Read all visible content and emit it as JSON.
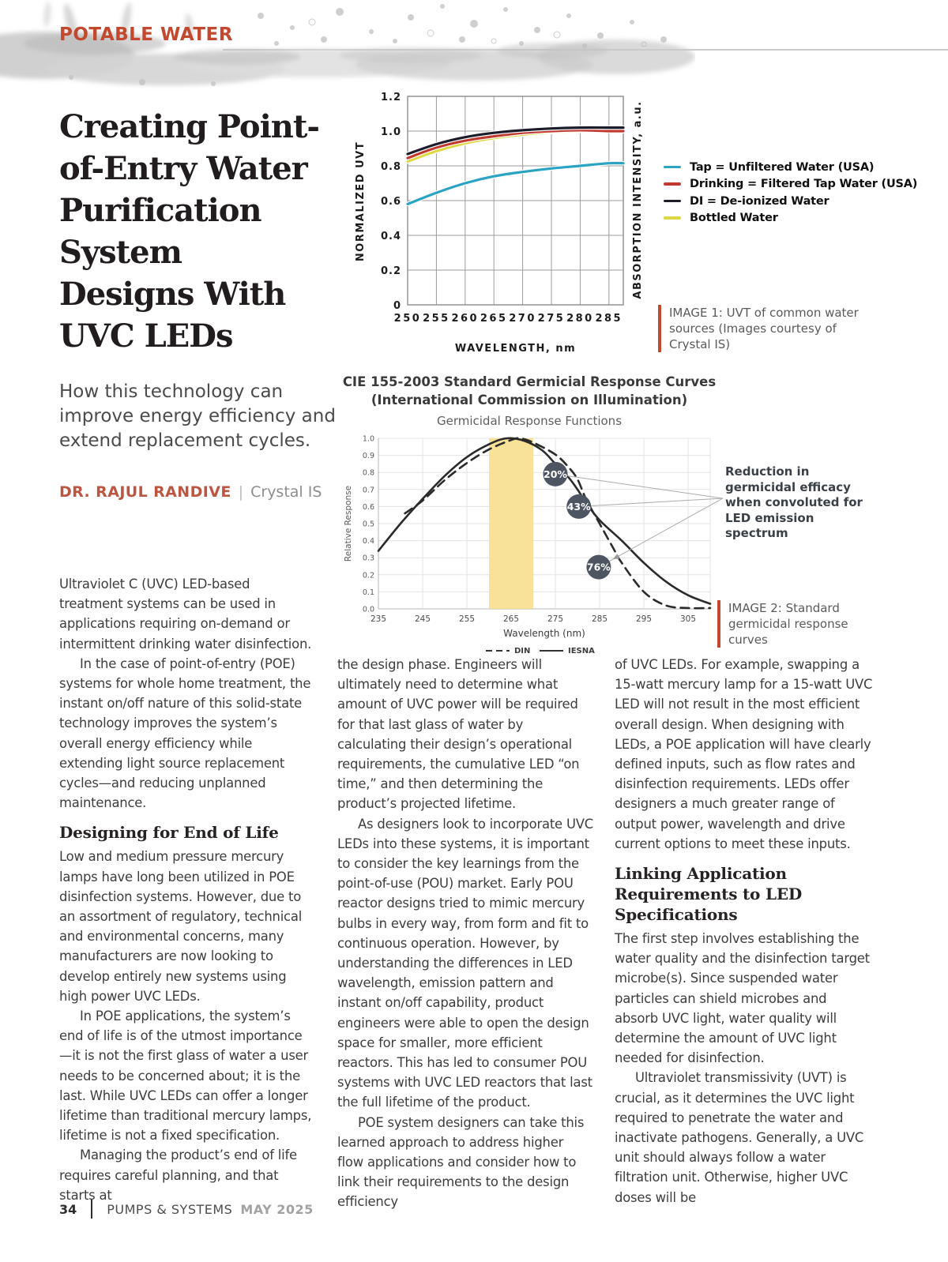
{
  "page": {
    "section_label": "POTABLE WATER",
    "footer": {
      "page_number": "34",
      "magazine": "PUMPS & SYSTEMS",
      "issue": "MAY 2025"
    }
  },
  "article": {
    "title": "Creating Point-\nof-Entry Water\nPurification\nSystem\nDesigns With\nUVC LEDs",
    "subtitle": "How this technology can\nimprove energy efficiency and\nextend replacement cycles.",
    "author": {
      "name": "DR. RAJUL RANDIVE",
      "separator": "|",
      "affiliation": "Crystal IS"
    },
    "col1": {
      "p1": "Ultraviolet C (UVC) LED-based treatment systems can be used in applications requiring on-demand or intermittent drinking water disinfection.",
      "p2": "In the case of point-of-entry (POE) systems for whole home treatment, the instant on/off nature of this solid-state technology improves the system’s overall energy efficiency while extending light source replacement cycles—and reducing unplanned maintenance.",
      "h1": "Designing for End of Life",
      "p3": "Low and medium pressure mercury lamps have long been utilized in POE disinfection systems. However, due to an assortment of regulatory, technical and environmental concerns, many manufacturers are now looking to develop entirely new systems using high power UVC LEDs.",
      "p4": "In POE applications, the system’s end of life is of the utmost importance—it is not the first glass of water a user needs to be concerned about; it is the last. While UVC LEDs can offer a longer lifetime than traditional mercury lamps, lifetime is not a fixed specification.",
      "p5": "Managing the product’s end of life requires careful planning, and that starts at"
    },
    "col2": {
      "p1": "the design phase. Engineers will ultimately need to determine what amount of UVC power will be required for that last glass of water by calculating their design’s operational requirements, the cumulative LED “on time,” and then determining the product’s projected lifetime.",
      "p2": "As designers look to incorporate UVC LEDs into these systems, it is important to consider the key learnings from the point-of-use (POU) market. Early POU reactor designs tried to mimic mercury bulbs in every way, from form and fit to continuous operation. However, by understanding the differences in LED wavelength, emission pattern and instant on/off capability, product engineers were able to open the design space for smaller, more efficient reactors. This has led to consumer POU systems with UVC LED reactors that last the full lifetime of the product.",
      "p3": "POE system designers can take this learned approach to address higher flow applications and consider how to link their requirements to the design efficiency"
    },
    "col3": {
      "p1": "of UVC LEDs. For example, swapping a 15-watt mercury lamp for a 15-watt UVC LED will not result in the most efficient overall design. When designing with LEDs, a POE application will have clearly defined inputs, such as flow rates and disinfection requirements. LEDs offer designers a much greater range of output power, wavelength and drive current options to meet these inputs.",
      "h1": "Linking Application Requirements to LED Specifications",
      "p2": "The first step involves establishing the water quality and the disinfection target microbe(s). Since suspended water particles can shield microbes and absorb UVC light, water quality will determine the amount of UVC light needed for disinfection.",
      "p3": "Ultraviolet transmissivity (UVT) is crucial, as it determines the UVC light required to penetrate the water and inactivate pathogens. Generally, a UVC unit should always follow a water filtration unit. Otherwise, higher UVC doses will be"
    }
  },
  "captions": {
    "image1": "IMAGE 1: UVT of common water sources (Images courtesy of Crystal IS)",
    "image2": "IMAGE 2: Standard germicidal response curves"
  },
  "chart_data": [
    {
      "type": "line",
      "xlabel": "WAVELENGTH, nm",
      "ylabel_left": "NORMALIZED UVT",
      "ylabel_right": "ABSORPTION INTENSITY, a.u.",
      "xlim": [
        250,
        287.5
      ],
      "ylim": [
        0,
        1.2
      ],
      "xticks": [
        250,
        255,
        260,
        265,
        270,
        275,
        280,
        285
      ],
      "yticks": [
        0,
        0.2,
        0.4,
        0.6,
        0.8,
        1.0,
        1.2
      ],
      "grid": true,
      "legend_position": "right",
      "x": [
        250,
        255,
        260,
        265,
        270,
        275,
        280,
        285
      ],
      "series": [
        {
          "name": "Tap = Unfiltered Water (USA)",
          "color": "#2ba3c2",
          "values": [
            0.58,
            0.645,
            0.7,
            0.74,
            0.765,
            0.785,
            0.8,
            0.815
          ]
        },
        {
          "name": "Drinking = Filtered Tap Water (USA)",
          "color": "#c0392f",
          "values": [
            0.845,
            0.905,
            0.945,
            0.97,
            0.99,
            1.0,
            1.005,
            1.0
          ]
        },
        {
          "name": "DI = De-ionized Water",
          "color": "#1d1c2b",
          "values": [
            0.868,
            0.925,
            0.965,
            0.99,
            1.005,
            1.015,
            1.02,
            1.02
          ]
        },
        {
          "name": "Bottled Water",
          "color": "#ded843",
          "values": [
            0.825,
            0.885,
            0.93,
            0.96,
            0.98,
            0.995,
            1.0,
            1.0
          ]
        }
      ]
    },
    {
      "type": "line",
      "title": "CIE 155-2003 Standard Germicial Response Curves",
      "title2": "(International Commission on Illumination)",
      "subtitle": "Germicidal Response Functions",
      "xlabel": "Wavelength (nm)",
      "ylabel": "Relative Response",
      "xlim": [
        235,
        310
      ],
      "ylim": [
        0,
        1.0
      ],
      "xticks": [
        235,
        245,
        255,
        265,
        275,
        285,
        295,
        305
      ],
      "yticks": [
        0,
        0.1,
        0.2,
        0.3,
        0.4,
        0.5,
        0.6,
        0.7,
        0.8,
        0.9,
        1.0
      ],
      "grid": true,
      "highlight_band_nm": [
        260,
        270
      ],
      "band_color": "#f6df8d",
      "badge_color": "#4d5563",
      "annotation_note": "Reduction in germicidal efficacy when convoluted for LED emission spectrum",
      "annotations": [
        {
          "label": "20%",
          "x": 275,
          "y": 0.79
        },
        {
          "label": "43%",
          "x": 280.3,
          "y": 0.6
        },
        {
          "label": "76%",
          "x": 284.8,
          "y": 0.245
        }
      ],
      "series": [
        {
          "name": "DIN",
          "style": "dashed",
          "color": "#2b2b2b",
          "points": [
            [
              241,
              0.56
            ],
            [
              245,
              0.635
            ],
            [
              250,
              0.755
            ],
            [
              255,
              0.855
            ],
            [
              260,
              0.935
            ],
            [
              265,
              0.99
            ],
            [
              267,
              1.0
            ],
            [
              270,
              0.975
            ],
            [
              275,
              0.905
            ],
            [
              278,
              0.83
            ],
            [
              280,
              0.76
            ],
            [
              282,
              0.64
            ],
            [
              285,
              0.5
            ],
            [
              288,
              0.36
            ],
            [
              290,
              0.27
            ],
            [
              295,
              0.1
            ],
            [
              300,
              0.02
            ],
            [
              305,
              0.005
            ],
            [
              310,
              0.005
            ]
          ]
        },
        {
          "name": "IESNA",
          "style": "solid",
          "color": "#2b2b2b",
          "points": [
            [
              235,
              0.34
            ],
            [
              240,
              0.5
            ],
            [
              245,
              0.645
            ],
            [
              250,
              0.78
            ],
            [
              255,
              0.89
            ],
            [
              260,
              0.965
            ],
            [
              264,
              1.0
            ],
            [
              268,
              0.985
            ],
            [
              272,
              0.93
            ],
            [
              275,
              0.85
            ],
            [
              278,
              0.77
            ],
            [
              280,
              0.7
            ],
            [
              282,
              0.62
            ],
            [
              285,
              0.52
            ],
            [
              290,
              0.4
            ],
            [
              295,
              0.27
            ],
            [
              300,
              0.16
            ],
            [
              305,
              0.08
            ],
            [
              310,
              0.03
            ]
          ]
        }
      ]
    }
  ]
}
